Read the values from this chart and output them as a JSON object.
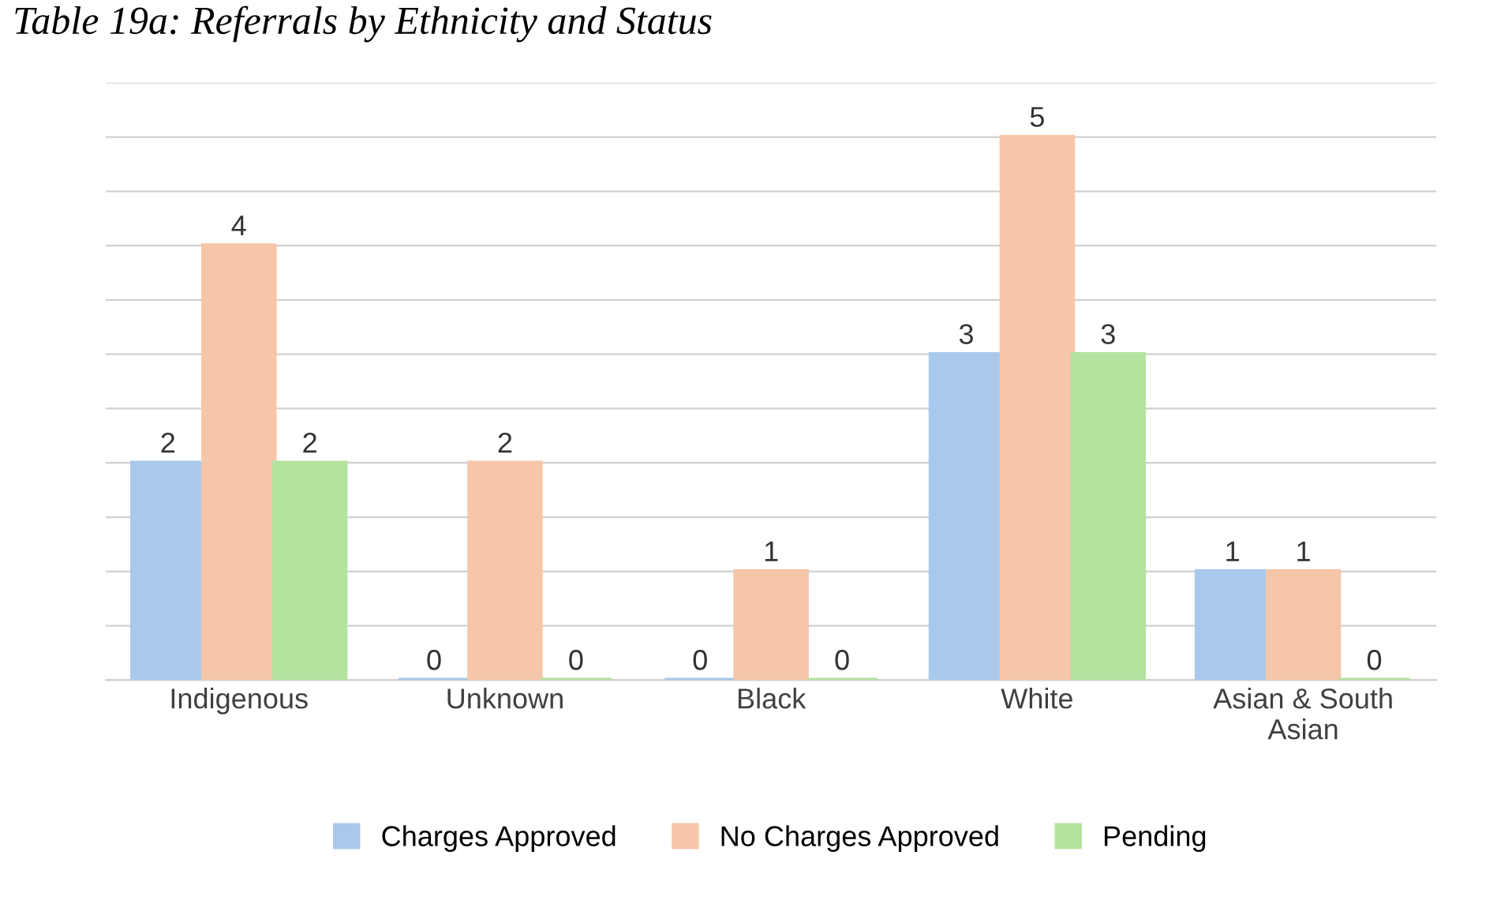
{
  "chart_data": {
    "type": "bar",
    "title": "Table 19a: Referrals by Ethnicity and Status",
    "categories": [
      "Indigenous",
      "Unknown",
      "Black",
      "White",
      "Asian & South\nAsian"
    ],
    "series": [
      {
        "name": "Charges Approved",
        "color": "#a9c9ec",
        "values": [
          2,
          0,
          0,
          3,
          1
        ]
      },
      {
        "name": "No Charges Approved",
        "color": "#f6c6a9",
        "values": [
          4,
          2,
          1,
          5,
          1
        ]
      },
      {
        "name": "Pending",
        "color": "#b4e3a0",
        "values": [
          2,
          0,
          0,
          3,
          0
        ]
      }
    ],
    "ylim": [
      0,
      5.5
    ],
    "yticks": [
      {
        "value": 0,
        "label": null
      },
      {
        "value": 0.5,
        "label": null
      },
      {
        "value": 1,
        "label": null
      },
      {
        "value": 1.5,
        "label": null
      },
      {
        "value": 2,
        "label": null
      },
      {
        "value": 2.5,
        "label": null
      },
      {
        "value": 3,
        "label": null
      },
      {
        "value": 3.5,
        "label": null
      },
      {
        "value": 4,
        "label": null
      },
      {
        "value": 4.5,
        "label": null
      },
      {
        "value": 5,
        "label": null
      },
      {
        "value": 5.5,
        "label": null
      }
    ],
    "tick_labels": "x",
    "grid": "y",
    "legend": "bottom",
    "data_labels": true
  }
}
